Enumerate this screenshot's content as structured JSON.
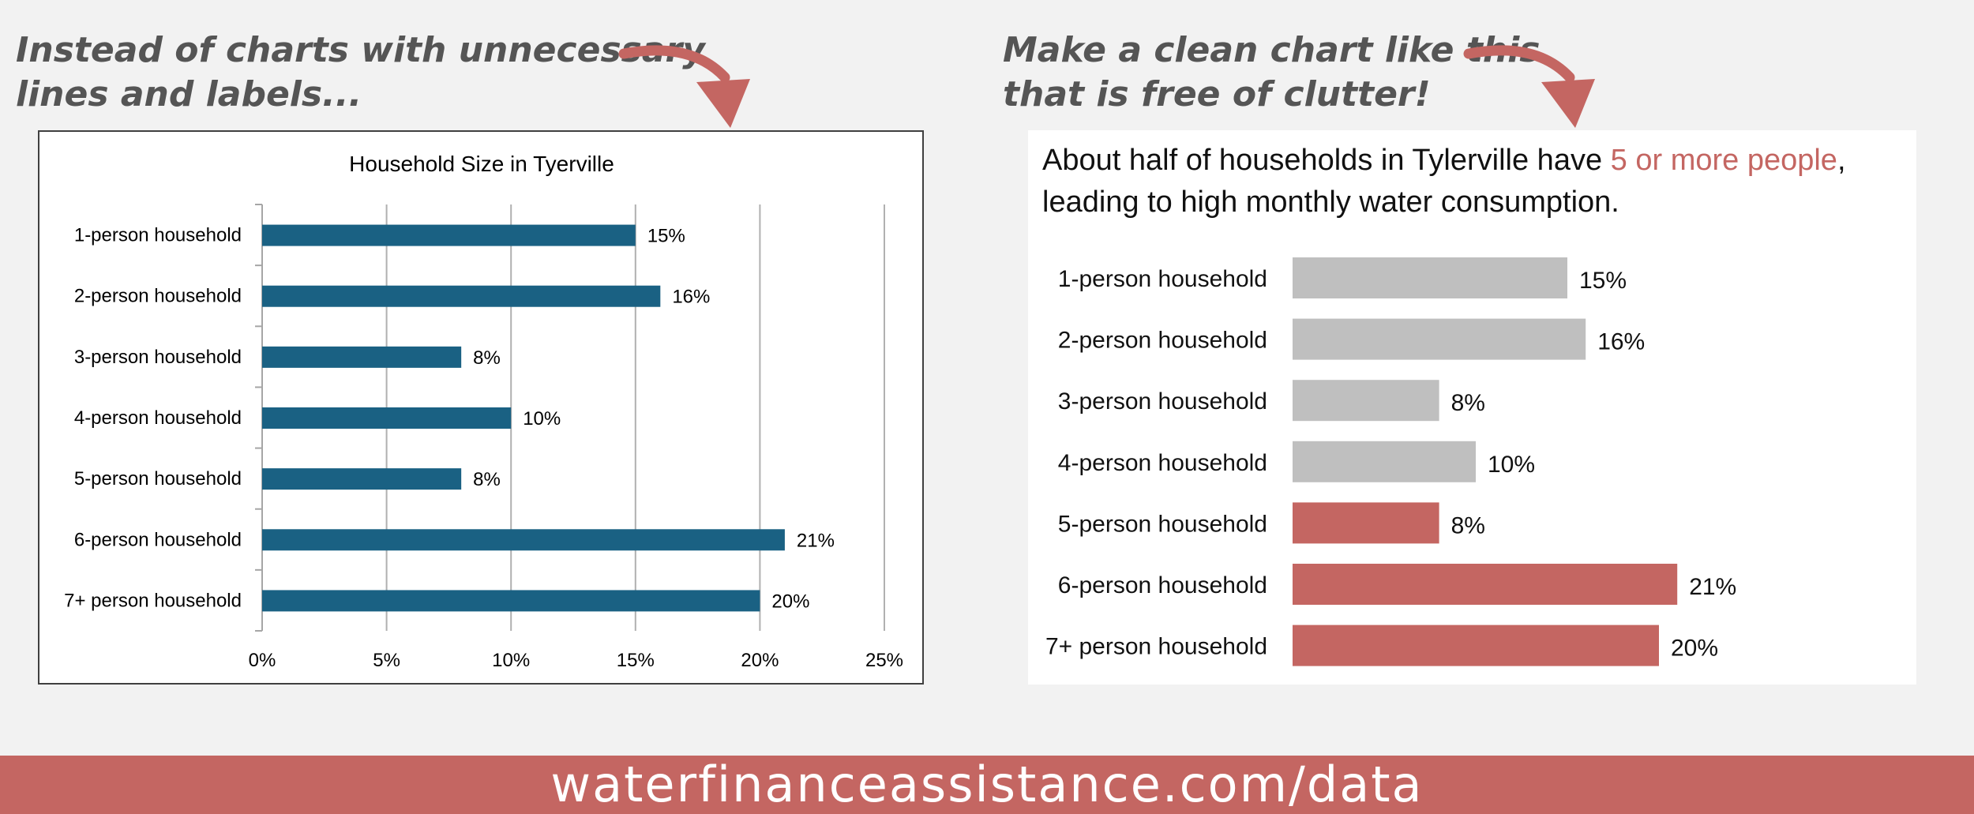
{
  "captions": {
    "left_line1": "Instead of charts with unnecessary",
    "left_line2": "lines and labels...",
    "right_line1": "Make a clean chart like this",
    "right_line2": "that is free of clutter!"
  },
  "footer": {
    "text": "waterfinanceassistance.com/data"
  },
  "colors": {
    "cluttered_bar": "#1a6183",
    "clean_bar_muted": "#bfbfbf",
    "clean_bar_highlight": "#c46662",
    "highlight_text": "#c46662",
    "footer_bg": "#c46662"
  },
  "chart_data": [
    {
      "type": "bar",
      "orientation": "horizontal",
      "title": "Household Size in Tyerville",
      "categories": [
        "1-person household",
        "2-person household",
        "3-person household",
        "4-person household",
        "5-person household",
        "6-person household",
        "7+ person household"
      ],
      "values": [
        15,
        16,
        8,
        10,
        8,
        21,
        20
      ],
      "value_labels": [
        "15%",
        "16%",
        "8%",
        "10%",
        "8%",
        "21%",
        "20%"
      ],
      "xlim": [
        0,
        25
      ],
      "x_ticks": [
        "0%",
        "5%",
        "10%",
        "15%",
        "20%",
        "25%"
      ],
      "grid": true,
      "legend": "none"
    },
    {
      "type": "bar",
      "orientation": "horizontal",
      "title_parts": [
        "About half of households in Tylerville have ",
        "5 or more people",
        ","
      ],
      "title_line2": "leading to high monthly water consumption.",
      "categories": [
        "1-person household",
        "2-person household",
        "3-person household",
        "4-person household",
        "5-person household",
        "6-person household",
        "7+ person household"
      ],
      "values": [
        15,
        16,
        8,
        10,
        8,
        21,
        20
      ],
      "value_labels": [
        "15%",
        "16%",
        "8%",
        "10%",
        "8%",
        "21%",
        "20%"
      ],
      "highlighted": [
        false,
        false,
        false,
        false,
        true,
        true,
        true
      ],
      "grid": false,
      "legend": "none"
    }
  ]
}
